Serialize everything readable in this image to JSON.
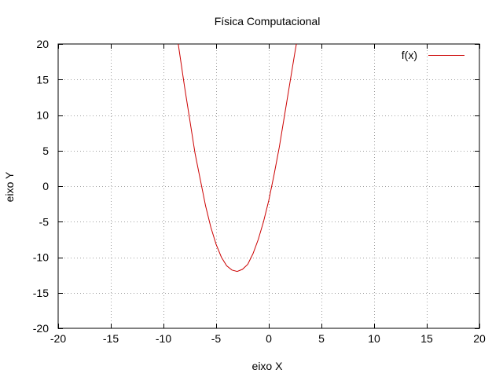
{
  "chart_data": {
    "type": "line",
    "title": "Física Computacional",
    "xlabel": "eixo X",
    "ylabel": "eixo Y",
    "xlim": [
      -20,
      20
    ],
    "ylim": [
      -20,
      20
    ],
    "xticks": [
      -20,
      -15,
      -10,
      -5,
      0,
      5,
      10,
      15,
      20
    ],
    "yticks": [
      -20,
      -15,
      -10,
      -5,
      0,
      5,
      10,
      15,
      20
    ],
    "grid": true,
    "grid_style": "dotted",
    "legend_position": "top-right",
    "series": [
      {
        "name": "f(x)",
        "color": "#cc0000",
        "x": [
          -8.6,
          -8.0,
          -7.5,
          -7.0,
          -6.5,
          -6.0,
          -5.5,
          -5.0,
          -4.5,
          -4.0,
          -3.5,
          -3.0,
          -2.5,
          -2.0,
          -1.5,
          -1.0,
          -0.5,
          0.0,
          0.5,
          1.0,
          1.5,
          2.0,
          2.5,
          2.62
        ],
        "y": [
          20.0,
          14.0,
          9.3,
          4.6,
          0.9,
          -2.8,
          -5.8,
          -8.2,
          -10.0,
          -11.2,
          -11.8,
          -12.0,
          -11.7,
          -11.0,
          -9.5,
          -7.5,
          -5.0,
          -2.0,
          1.6,
          5.5,
          10.0,
          14.5,
          19.0,
          20.0
        ]
      }
    ]
  }
}
